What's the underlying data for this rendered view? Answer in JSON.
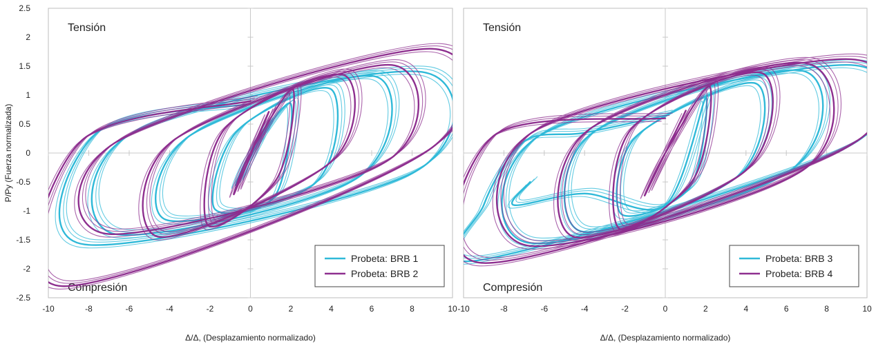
{
  "chart_data": [
    {
      "type": "line",
      "ylabel": "P/Py (Fuerza normalizada)",
      "xlabel": "Δ/Δ, (Desplazamiento normalizado)",
      "xlim": [
        -10,
        10
      ],
      "ylim": [
        -2.5,
        2.5
      ],
      "xticks": [
        "-10",
        "-8",
        "-6",
        "-4",
        "-2",
        "0",
        "2",
        "4",
        "6",
        "8",
        "10"
      ],
      "yticks": [
        "-2.5",
        "-2",
        "-1.5",
        "-1",
        "-0.5",
        "0",
        "0.5",
        "1",
        "1.5",
        "2",
        "2.5"
      ],
      "annotations": {
        "top": "Tensión",
        "bottom": "Compresión"
      },
      "legend_position": "bottom-right",
      "series": [
        {
          "name": "Probeta: BRB 1",
          "color": "#2fb9d8",
          "x": [
            0,
            0.9,
            -0.7,
            0,
            2,
            1.2,
            -1.8,
            -0.6,
            4,
            3.1,
            -4.2,
            -3,
            6.2,
            5.2,
            -6.7,
            -5.8,
            8.5,
            8,
            -8.2,
            -7.6,
            0
          ],
          "y": [
            0,
            0.55,
            -0.55,
            0,
            0.85,
            -0.75,
            -0.95,
            0.4,
            1.1,
            -0.55,
            -1.15,
            0.3,
            1.32,
            -0.45,
            -1.4,
            0.35,
            1.4,
            -0.35,
            -1.58,
            0.35,
            0.85
          ]
        },
        {
          "name": "Probeta: BRB 2",
          "color": "#8e2f8f",
          "x": [
            0,
            0.9,
            -0.8,
            0,
            2.1,
            1.3,
            -2.1,
            -1.2,
            4.6,
            4,
            -4.5,
            -3.8,
            7,
            6.7,
            -7,
            -6.5,
            9,
            8.6,
            -9.3,
            -8.4,
            0
          ],
          "y": [
            0,
            0.7,
            -0.7,
            0,
            1.1,
            -0.45,
            -1.25,
            0.45,
            1.35,
            -0.15,
            -1.45,
            0.22,
            1.52,
            -0.15,
            -1.4,
            0.22,
            1.8,
            0,
            -2.3,
            0.2,
            0.9
          ]
        }
      ]
    },
    {
      "type": "line",
      "ylabel": "",
      "xlabel": "Δ/Δ, (Desplazamiento normalizado)",
      "xlim": [
        -10,
        10
      ],
      "ylim": [
        -2.5,
        2.5
      ],
      "xticks": [
        "-10",
        "-8",
        "-6",
        "-4",
        "-2",
        "0",
        "2",
        "4",
        "6",
        "8",
        "10"
      ],
      "yticks": [],
      "annotations": {
        "top": "Tensión",
        "bottom": "Compresión"
      },
      "legend_position": "bottom-right",
      "series": [
        {
          "name": "Probeta: BRB 3",
          "color": "#2fb9d8",
          "x": [
            -6.7,
            -7.5,
            -4,
            0,
            2,
            1.2,
            -2.2,
            -1.4,
            4.5,
            3.6,
            -4.2,
            -3.6,
            6.8,
            6,
            -6.8,
            -6,
            9.2,
            9,
            -9.2,
            -9,
            -7,
            -4,
            0
          ],
          "y": [
            -0.5,
            -0.9,
            -0.7,
            -0.9,
            0.95,
            -0.6,
            -1.05,
            0.3,
            1.2,
            -0.4,
            -1.35,
            0.35,
            1.42,
            -0.35,
            -1.55,
            0.35,
            1.52,
            0.1,
            -1.85,
            -0.9,
            0.2,
            0.35,
            0.65
          ]
        },
        {
          "name": "Probeta: BRB 4",
          "color": "#8e2f8f",
          "x": [
            0,
            1,
            -1,
            0,
            2.2,
            1.4,
            -2.3,
            -1.6,
            4.8,
            4,
            -4.5,
            -3.8,
            7,
            6.8,
            -6.8,
            -6.4,
            9.2,
            9,
            -9,
            -8.5,
            0
          ],
          "y": [
            0,
            0.72,
            -0.72,
            0,
            1.15,
            -0.45,
            -1.3,
            0.45,
            1.38,
            -0.3,
            -1.45,
            0.4,
            1.55,
            -0.3,
            -1.6,
            0.4,
            1.62,
            0.1,
            -1.9,
            0.3,
            0.6
          ]
        }
      ]
    }
  ]
}
